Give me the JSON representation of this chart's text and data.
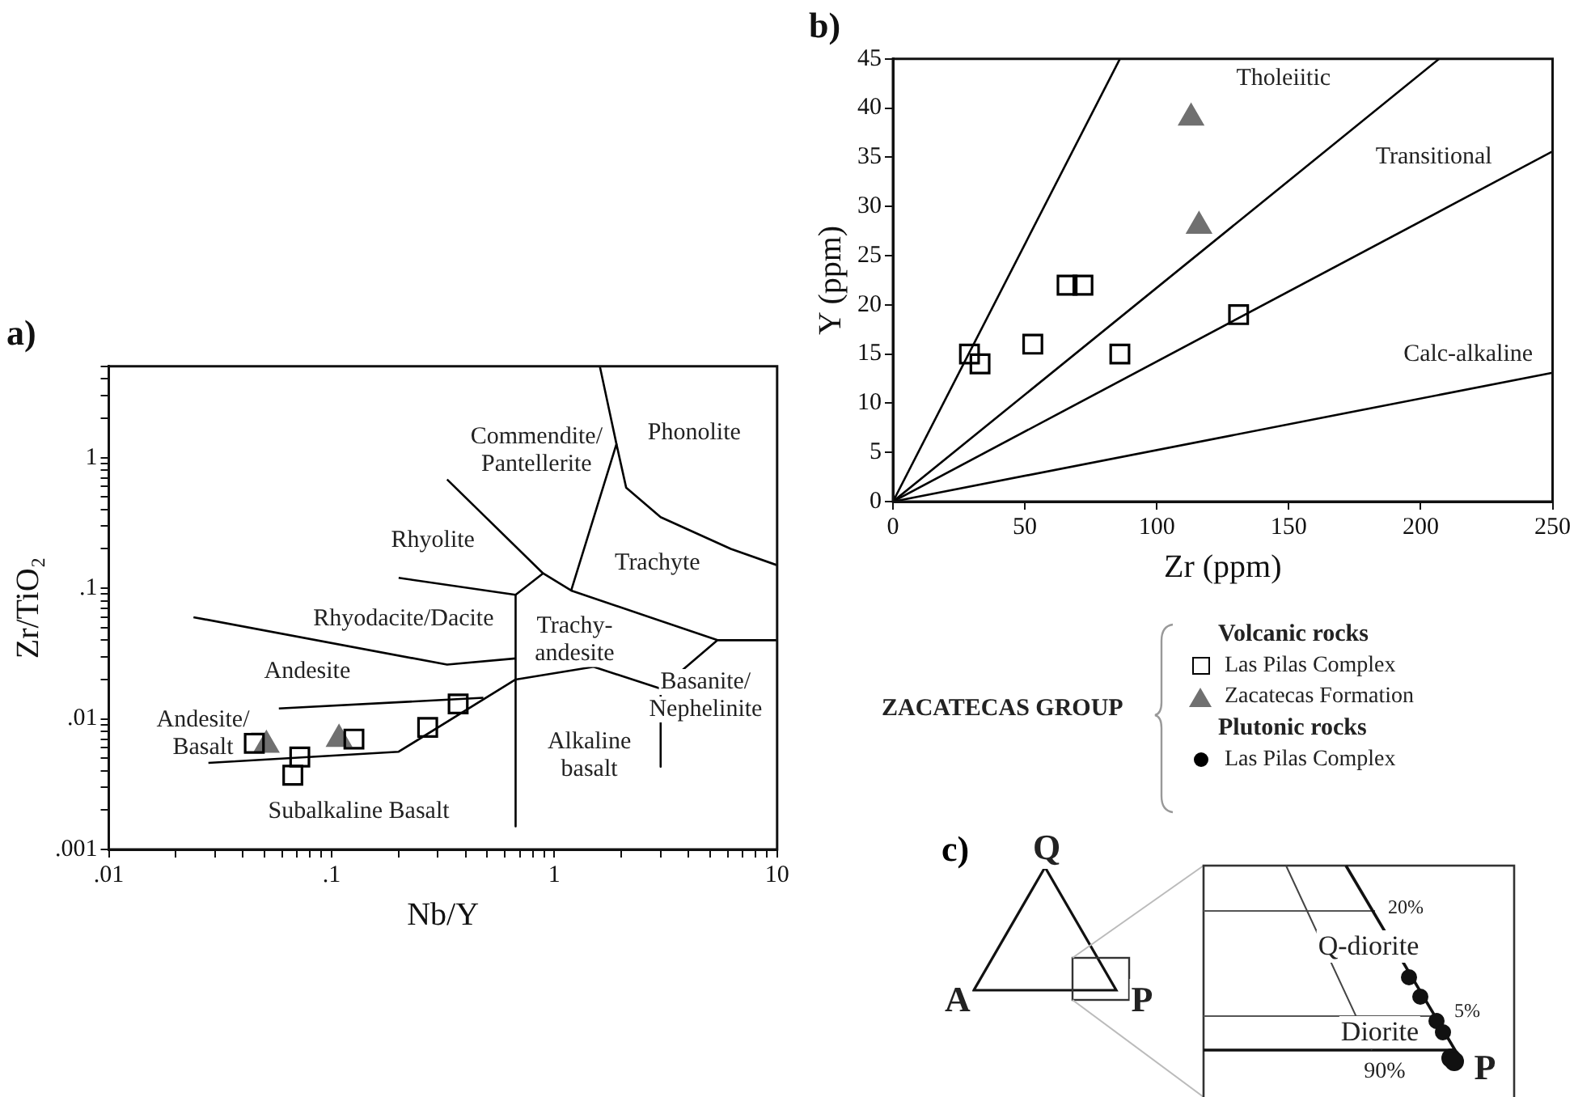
{
  "chart_data": [
    {
      "type": "scatter",
      "title": "a)",
      "xlabel": "Nb/Y",
      "ylabel": "Zr/TiO₂",
      "log": "xy",
      "grid": false,
      "xlim": [
        0.01,
        10
      ],
      "xticks": [
        {
          "value": 0.01,
          "label": ".01"
        },
        {
          "value": 0.02,
          "label": null
        },
        {
          "value": 0.03,
          "label": null
        },
        {
          "value": 0.04,
          "label": null
        },
        {
          "value": 0.05,
          "label": null
        },
        {
          "value": 0.06,
          "label": null
        },
        {
          "value": 0.07,
          "label": null
        },
        {
          "value": 0.08,
          "label": null
        },
        {
          "value": 0.09,
          "label": null
        },
        {
          "value": 0.1,
          "label": ".1"
        },
        {
          "value": 0.2,
          "label": null
        },
        {
          "value": 0.3,
          "label": null
        },
        {
          "value": 0.4,
          "label": null
        },
        {
          "value": 0.5,
          "label": null
        },
        {
          "value": 0.6,
          "label": null
        },
        {
          "value": 0.7,
          "label": null
        },
        {
          "value": 0.8,
          "label": null
        },
        {
          "value": 0.9,
          "label": null
        },
        1,
        {
          "value": 2,
          "label": null
        },
        {
          "value": 3,
          "label": null
        },
        {
          "value": 4,
          "label": null
        },
        {
          "value": 5,
          "label": null
        },
        {
          "value": 6,
          "label": null
        },
        {
          "value": 7,
          "label": null
        },
        {
          "value": 8,
          "label": null
        },
        {
          "value": 9,
          "label": null
        },
        10
      ],
      "ylim": [
        0.001,
        5
      ],
      "yticks": [
        {
          "value": 0.001,
          "label": ".001"
        },
        {
          "value": 0.002,
          "label": null
        },
        {
          "value": 0.003,
          "label": null
        },
        {
          "value": 0.004,
          "label": null
        },
        {
          "value": 0.005,
          "label": null
        },
        {
          "value": 0.006,
          "label": null
        },
        {
          "value": 0.007,
          "label": null
        },
        {
          "value": 0.008,
          "label": null
        },
        {
          "value": 0.009,
          "label": null
        },
        {
          "value": 0.01,
          "label": ".01"
        },
        {
          "value": 0.02,
          "label": null
        },
        {
          "value": 0.03,
          "label": null
        },
        {
          "value": 0.04,
          "label": null
        },
        {
          "value": 0.05,
          "label": null
        },
        {
          "value": 0.06,
          "label": null
        },
        {
          "value": 0.07,
          "label": null
        },
        {
          "value": 0.08,
          "label": null
        },
        {
          "value": 0.09,
          "label": null
        },
        {
          "value": 0.1,
          "label": ".1"
        },
        {
          "value": 0.2,
          "label": null
        },
        {
          "value": 0.3,
          "label": null
        },
        {
          "value": 0.4,
          "label": null
        },
        {
          "value": 0.5,
          "label": null
        },
        {
          "value": 0.6,
          "label": null
        },
        {
          "value": 0.7,
          "label": null
        },
        {
          "value": 0.8,
          "label": null
        },
        {
          "value": 0.9,
          "label": null
        },
        1,
        {
          "value": 2,
          "label": null
        },
        {
          "value": 3,
          "label": null
        },
        {
          "value": 4,
          "label": null
        },
        {
          "value": 5,
          "label": null
        }
      ],
      "series": [
        {
          "type": "scatter",
          "marker": "square",
          "color": "#000000",
          "x": [
            0.045,
            0.072,
            0.067,
            0.126,
            0.27,
            0.37
          ],
          "values": [
            0.0065,
            0.0051,
            0.0037,
            0.007,
            0.0086,
            0.013
          ]
        },
        {
          "type": "scatter",
          "marker": "triangle",
          "color": "#707070",
          "x": [
            0.051,
            0.108
          ],
          "values": [
            0.0063,
            0.007
          ]
        },
        {
          "type": "line",
          "color": "#000000",
          "x": [
            0.028,
            0.2,
            0.67,
            1.5,
            3,
            5.4,
            10
          ],
          "values": [
            0.0046,
            0.0056,
            0.02,
            0.025,
            0.017,
            0.04,
            0.04
          ]
        },
        {
          "type": "line",
          "color": "#000000",
          "x": [
            0.67,
            0.67
          ],
          "values": [
            0.089,
            0.0015
          ]
        },
        {
          "type": "line",
          "color": "#000000",
          "x": [
            0.024,
            0.33,
            0.67
          ],
          "values": [
            0.06,
            0.026,
            0.029
          ]
        },
        {
          "type": "line",
          "color": "#000000",
          "x": [
            0.058,
            0.48
          ],
          "values": [
            0.012,
            0.0145
          ]
        },
        {
          "type": "line",
          "color": "#000000",
          "x": [
            0.2,
            0.67,
            0.89
          ],
          "values": [
            0.12,
            0.089,
            0.13
          ]
        },
        {
          "type": "line",
          "color": "#000000",
          "x": [
            0.33,
            0.89,
            1.19,
            5.4
          ],
          "values": [
            0.68,
            0.13,
            0.096,
            0.04
          ]
        },
        {
          "type": "line",
          "color": "#000000",
          "x": [
            1.19,
            1.9,
            1.6
          ],
          "values": [
            0.096,
            1.27,
            5
          ]
        },
        {
          "type": "line",
          "color": "#000000",
          "x": [
            1.9,
            2.1,
            3,
            6.2,
            10
          ],
          "values": [
            1.27,
            0.59,
            0.35,
            0.2,
            0.15
          ]
        },
        {
          "type": "line",
          "color": "#000000",
          "x": [
            3,
            3
          ],
          "values": [
            0.017,
            0.0043
          ]
        }
      ],
      "annotations": [
        "Commendite/\nPantellerite",
        "Phonolite",
        "Rhyolite",
        "Trachyte",
        "Rhyodacite/Dacite",
        "Trachy-\nandesite",
        "Andesite",
        "Basanite/\nNephelinite",
        "Andesite/\nBasalt",
        "Alkaline\nbasalt",
        "Subalkaline Basalt"
      ]
    },
    {
      "type": "scatter",
      "title": "b)",
      "xlabel": "Zr (ppm)",
      "ylabel": "Y (ppm)",
      "grid": false,
      "legend": "bottom",
      "legend_title": "ZACATECAS GROUP",
      "xlim": [
        0,
        250
      ],
      "xticks": [
        0,
        50,
        100,
        150,
        200,
        250
      ],
      "ylim": [
        0,
        45
      ],
      "yticks": [
        0,
        5,
        10,
        15,
        20,
        25,
        30,
        35,
        40,
        45
      ],
      "series": [
        {
          "type": "scatter",
          "name": "Las Pilas Complex",
          "marker": "square",
          "color": "#000000",
          "x": [
            29,
            33,
            53,
            66,
            72,
            86,
            131
          ],
          "values": [
            15,
            14,
            16,
            22,
            22,
            15,
            19
          ]
        },
        {
          "type": "scatter",
          "name": "Zacatecas Formation",
          "marker": "triangle",
          "color": "#707070",
          "x": [
            113,
            116
          ],
          "values": [
            39,
            28
          ]
        },
        {
          "type": "scatter",
          "name": "Las Pilas Complex",
          "marker": "circle",
          "color": "#000000"
        },
        {
          "type": "line",
          "color": "#000000",
          "x": [
            0,
            86
          ],
          "values": [
            0,
            45
          ]
        },
        {
          "type": "line",
          "color": "#000000",
          "x": [
            0,
            207
          ],
          "values": [
            0,
            45
          ]
        },
        {
          "type": "line",
          "color": "#000000",
          "x": [
            0,
            250
          ],
          "values": [
            0,
            35.6
          ]
        },
        {
          "type": "line",
          "color": "#000000",
          "x": [
            0,
            250
          ],
          "values": [
            0,
            13.1
          ]
        }
      ],
      "annotations": [
        "Tholeiitic",
        "Transitional",
        "Calc-alkaline",
        "Volcanic rocks",
        "Plutonic rocks"
      ]
    },
    {
      "type": "other",
      "title": "c)",
      "annotations": [
        "Q",
        "A",
        "P",
        "20%",
        "Q-diorite",
        "5%",
        "Diorite",
        "90%",
        "P"
      ]
    }
  ]
}
